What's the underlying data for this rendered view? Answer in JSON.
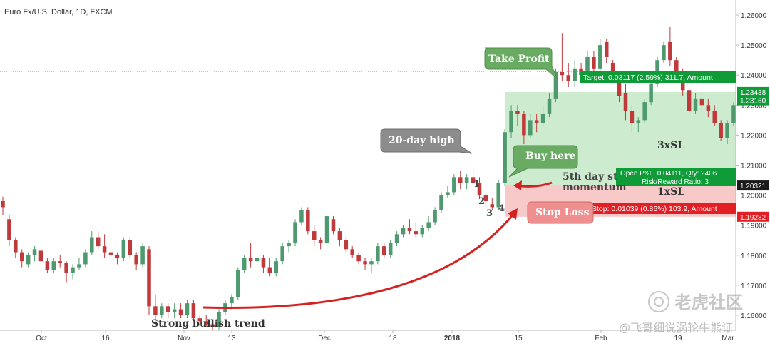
{
  "chart_data": {
    "type": "candlestick",
    "title": "Euro Fx/U.S. Dollar, 1D, FXCM",
    "colors": {
      "up": "#4e9a6e",
      "down": "#c0393b",
      "target_zone": "#cdebcf",
      "stop_zone": "#f7c9c9",
      "target_label": "#0f9b38",
      "stop_label": "#e31e24",
      "entry_label": "#1a1a1a",
      "arrow": "#d42222",
      "callout_gray": "#8c8c8c",
      "callout_green": "#6aab63",
      "callout_red": "#f08f8f"
    },
    "y_range": [
      1.155,
      1.265
    ],
    "y_ticks": [
      "1.26000",
      "1.25000",
      "1.24000",
      "1.23000",
      "1.22000",
      "1.21000",
      "1.20000",
      "1.19000",
      "1.18000",
      "1.17000",
      "1.16000"
    ],
    "x_ticks": [
      "Oct",
      "16",
      "Nov",
      "13",
      "Dec",
      "18",
      "2018",
      "15",
      "Feb",
      "19",
      "Mar"
    ],
    "price_labels": [
      "1.23438",
      "1.23160",
      "1.20321",
      "1.19282"
    ],
    "hline_level": 1.2412,
    "zones": {
      "target_top": 1.23438,
      "entry": 1.20321,
      "stop": 1.19282
    },
    "candles": [
      [
        1.198,
        1.1995,
        1.1935,
        1.196
      ],
      [
        1.192,
        1.1935,
        1.183,
        1.185
      ],
      [
        1.185,
        1.186,
        1.179,
        1.181
      ],
      [
        1.181,
        1.182,
        1.176,
        1.178
      ],
      [
        1.177,
        1.181,
        1.176,
        1.18
      ],
      [
        1.18,
        1.183,
        1.178,
        1.182
      ],
      [
        1.1815,
        1.183,
        1.177,
        1.178
      ],
      [
        1.178,
        1.179,
        1.174,
        1.175
      ],
      [
        1.175,
        1.179,
        1.174,
        1.178
      ],
      [
        1.178,
        1.18,
        1.176,
        1.1775
      ],
      [
        1.1775,
        1.178,
        1.171,
        1.174
      ],
      [
        1.174,
        1.177,
        1.172,
        1.176
      ],
      [
        1.176,
        1.179,
        1.175,
        1.177
      ],
      [
        1.177,
        1.182,
        1.176,
        1.181
      ],
      [
        1.181,
        1.188,
        1.18,
        1.186
      ],
      [
        1.186,
        1.188,
        1.182,
        1.183
      ],
      [
        1.183,
        1.187,
        1.179,
        1.181
      ],
      [
        1.181,
        1.182,
        1.177,
        1.18
      ],
      [
        1.18,
        1.181,
        1.177,
        1.179
      ],
      [
        1.179,
        1.186,
        1.178,
        1.185
      ],
      [
        1.185,
        1.186,
        1.179,
        1.18
      ],
      [
        1.18,
        1.181,
        1.175,
        1.177
      ],
      [
        1.177,
        1.184,
        1.176,
        1.183
      ],
      [
        1.182,
        1.183,
        1.16,
        1.163
      ],
      [
        1.163,
        1.167,
        1.158,
        1.16
      ],
      [
        1.16,
        1.164,
        1.159,
        1.163
      ],
      [
        1.163,
        1.164,
        1.159,
        1.161
      ],
      [
        1.161,
        1.164,
        1.159,
        1.162
      ],
      [
        1.162,
        1.164,
        1.159,
        1.16
      ],
      [
        1.16,
        1.165,
        1.159,
        1.164
      ],
      [
        1.164,
        1.165,
        1.158,
        1.159
      ],
      [
        1.159,
        1.16,
        1.156,
        1.158
      ],
      [
        1.158,
        1.16,
        1.156,
        1.157
      ],
      [
        1.157,
        1.158,
        1.155,
        1.156
      ],
      [
        1.156,
        1.162,
        1.155,
        1.161
      ],
      [
        1.161,
        1.165,
        1.16,
        1.164
      ],
      [
        1.164,
        1.167,
        1.162,
        1.166
      ],
      [
        1.166,
        1.176,
        1.165,
        1.175
      ],
      [
        1.175,
        1.18,
        1.174,
        1.179
      ],
      [
        1.179,
        1.184,
        1.176,
        1.178
      ],
      [
        1.178,
        1.181,
        1.176,
        1.179
      ],
      [
        1.179,
        1.18,
        1.174,
        1.176
      ],
      [
        1.176,
        1.179,
        1.173,
        1.174
      ],
      [
        1.174,
        1.179,
        1.173,
        1.178
      ],
      [
        1.178,
        1.184,
        1.177,
        1.183
      ],
      [
        1.183,
        1.185,
        1.181,
        1.184
      ],
      [
        1.184,
        1.192,
        1.183,
        1.191
      ],
      [
        1.191,
        1.196,
        1.19,
        1.195
      ],
      [
        1.195,
        1.196,
        1.187,
        1.188
      ],
      [
        1.188,
        1.19,
        1.183,
        1.185
      ],
      [
        1.185,
        1.186,
        1.182,
        1.184
      ],
      [
        1.184,
        1.194,
        1.183,
        1.193
      ],
      [
        1.192,
        1.193,
        1.187,
        1.188
      ],
      [
        1.188,
        1.189,
        1.183,
        1.185
      ],
      [
        1.185,
        1.186,
        1.181,
        1.182
      ],
      [
        1.182,
        1.183,
        1.179,
        1.18
      ],
      [
        1.18,
        1.181,
        1.177,
        1.178
      ],
      [
        1.178,
        1.179,
        1.175,
        1.177
      ],
      [
        1.177,
        1.179,
        1.174,
        1.178
      ],
      [
        1.178,
        1.184,
        1.177,
        1.183
      ],
      [
        1.183,
        1.184,
        1.179,
        1.18
      ],
      [
        1.18,
        1.185,
        1.179,
        1.184
      ],
      [
        1.184,
        1.188,
        1.183,
        1.187
      ],
      [
        1.187,
        1.19,
        1.186,
        1.189
      ],
      [
        1.189,
        1.192,
        1.187,
        1.188
      ],
      [
        1.188,
        1.191,
        1.186,
        1.187
      ],
      [
        1.187,
        1.19,
        1.186,
        1.189
      ],
      [
        1.189,
        1.193,
        1.188,
        1.191
      ],
      [
        1.191,
        1.196,
        1.19,
        1.195
      ],
      [
        1.195,
        1.201,
        1.194,
        1.2
      ],
      [
        1.2,
        1.203,
        1.199,
        1.201
      ],
      [
        1.201,
        1.207,
        1.2,
        1.206
      ],
      [
        1.206,
        1.208,
        1.202,
        1.204
      ],
      [
        1.204,
        1.207,
        1.202,
        1.206
      ],
      [
        1.206,
        1.209,
        1.203,
        1.204
      ],
      [
        1.204,
        1.206,
        1.199,
        1.2
      ],
      [
        1.2,
        1.201,
        1.196,
        1.198
      ],
      [
        1.197,
        1.199,
        1.195,
        1.196
      ],
      [
        1.196,
        1.205,
        1.195,
        1.204
      ],
      [
        1.204,
        1.222,
        1.203,
        1.221
      ],
      [
        1.221,
        1.23,
        1.219,
        1.228
      ],
      [
        1.228,
        1.23,
        1.223,
        1.227
      ],
      [
        1.227,
        1.228,
        1.217,
        1.22
      ],
      [
        1.22,
        1.227,
        1.219,
        1.225
      ],
      [
        1.225,
        1.227,
        1.221,
        1.224
      ],
      [
        1.224,
        1.23,
        1.223,
        1.227
      ],
      [
        1.227,
        1.234,
        1.226,
        1.232
      ],
      [
        1.232,
        1.242,
        1.231,
        1.241
      ],
      [
        1.241,
        1.254,
        1.238,
        1.24
      ],
      [
        1.24,
        1.244,
        1.236,
        1.238
      ],
      [
        1.238,
        1.245,
        1.236,
        1.242
      ],
      [
        1.242,
        1.244,
        1.238,
        1.24
      ],
      [
        1.24,
        1.248,
        1.239,
        1.246
      ],
      [
        1.246,
        1.248,
        1.24,
        1.242
      ],
      [
        1.242,
        1.252,
        1.241,
        1.25
      ],
      [
        1.251,
        1.252,
        1.244,
        1.246
      ],
      [
        1.244,
        1.245,
        1.238,
        1.24
      ],
      [
        1.239,
        1.24,
        1.231,
        1.233
      ],
      [
        1.234,
        1.237,
        1.225,
        1.228
      ],
      [
        1.228,
        1.23,
        1.221,
        1.224
      ],
      [
        1.224,
        1.226,
        1.221,
        1.225
      ],
      [
        1.225,
        1.232,
        1.224,
        1.231
      ],
      [
        1.231,
        1.238,
        1.23,
        1.237
      ],
      [
        1.237,
        1.246,
        1.236,
        1.245
      ],
      [
        1.245,
        1.251,
        1.244,
        1.25
      ],
      [
        1.251,
        1.256,
        1.243,
        1.245
      ],
      [
        1.245,
        1.246,
        1.239,
        1.241
      ],
      [
        1.241,
        1.242,
        1.233,
        1.235
      ],
      [
        1.235,
        1.236,
        1.227,
        1.228
      ],
      [
        1.228,
        1.234,
        1.227,
        1.232
      ],
      [
        1.232,
        1.234,
        1.228,
        1.23
      ],
      [
        1.23,
        1.232,
        1.226,
        1.228
      ],
      [
        1.228,
        1.23,
        1.223,
        1.224
      ],
      [
        1.224,
        1.225,
        1.218,
        1.219
      ],
      [
        1.219,
        1.225,
        1.217,
        1.224
      ],
      [
        1.224,
        1.231,
        1.223,
        1.23
      ]
    ],
    "callouts": {
      "high": "20-day high",
      "buy": "Buy here",
      "take_profit": "Take Profit",
      "stop_loss": "Stop Loss"
    },
    "step_labels": [
      "1",
      "2",
      "3",
      "4"
    ],
    "momentum_label": "5th day st\nmomentum",
    "trend_label": "Strong bullish trend",
    "target_text": "Target: 0.03117 (2.59%) 311.7, Amount",
    "stop_text": "Stop: 0.01039 (0.86%) 103.9, Amount",
    "entry_text": "Open P&L: 0.04111, Qty: 2406",
    "rr_text": "Risk/Reward Ratio: 3",
    "ratio_3x": "3xSL",
    "ratio_1x": "1xSL",
    "watermark_text": "老虎社区",
    "watermark_sub": "@飞哥细说涡轮牛熊证"
  }
}
